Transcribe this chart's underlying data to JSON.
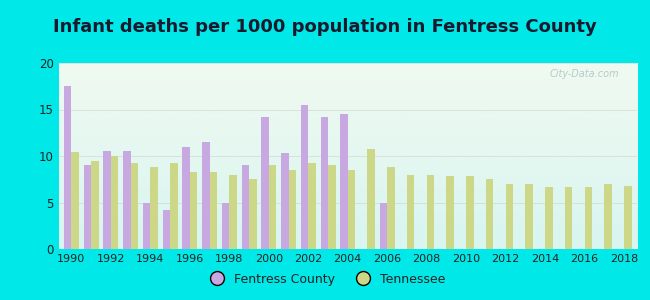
{
  "title": "Infant deaths per 1000 population in Fentress County",
  "years": [
    1990,
    1991,
    1992,
    1993,
    1994,
    1995,
    1996,
    1997,
    1998,
    1999,
    2000,
    2001,
    2002,
    2003,
    2004,
    2005,
    2006,
    2007,
    2008,
    2009,
    2010,
    2011,
    2012,
    2013,
    2014,
    2015,
    2016,
    2017,
    2018
  ],
  "fentress": [
    17.5,
    9.0,
    10.5,
    10.5,
    5.0,
    4.2,
    11.0,
    11.5,
    5.0,
    9.0,
    14.2,
    10.3,
    15.5,
    14.2,
    14.5,
    0.0,
    5.0,
    0.0,
    0.0,
    0.0,
    0.0,
    0.0,
    0.0,
    0.0,
    0.0,
    0.0,
    0.0,
    0.0,
    0.0
  ],
  "tennessee": [
    10.4,
    9.5,
    10.0,
    9.3,
    8.8,
    9.3,
    8.3,
    8.3,
    8.0,
    7.5,
    9.0,
    8.5,
    9.3,
    9.0,
    8.5,
    10.8,
    8.8,
    8.0,
    8.0,
    7.8,
    7.8,
    7.5,
    7.0,
    7.0,
    6.7,
    6.7,
    6.7,
    7.0,
    6.8
  ],
  "fentress_color": "#c8a8e0",
  "tennessee_color": "#ccd888",
  "bg_color": "#00e8e8",
  "ylim": [
    0,
    20
  ],
  "yticks": [
    0,
    5,
    10,
    15,
    20
  ],
  "title_fontsize": 13,
  "bar_width": 0.38,
  "legend_fentress": "Fentress County",
  "legend_tennessee": "Tennessee",
  "watermark": "City-Data.com",
  "grad_top": "#f0faf0",
  "grad_bottom": "#d8f5f0",
  "title_color": "#1a1a2e"
}
